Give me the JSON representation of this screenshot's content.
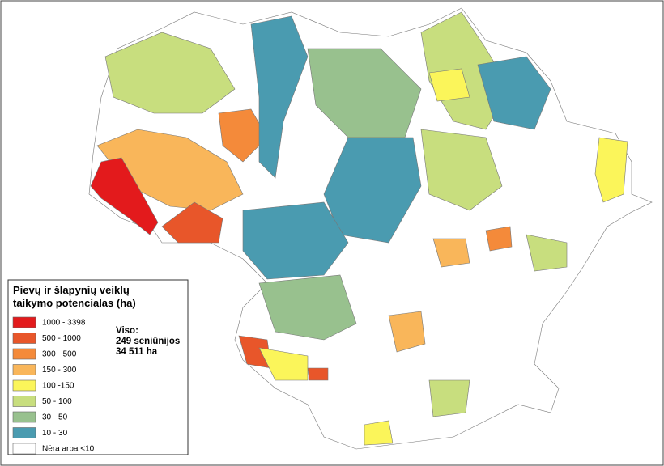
{
  "legend": {
    "title_lines": [
      "Pievų ir šlapynių veiklų",
      "taikymo potencialas (ha)"
    ],
    "items": [
      {
        "label": "1000 - 3398",
        "color": "#e31a1c"
      },
      {
        "label": "500 - 1000",
        "color": "#e8562a"
      },
      {
        "label": "300 - 500",
        "color": "#f48a3a"
      },
      {
        "label": "150 - 300",
        "color": "#f9b65a"
      },
      {
        "label": "100 -150",
        "color": "#fbf55a"
      },
      {
        "label": "50 - 100",
        "color": "#c8de7e"
      },
      {
        "label": "30 - 50",
        "color": "#98c18e"
      },
      {
        "label": "10 - 30",
        "color": "#4a9bb0"
      },
      {
        "label": "Nėra arba <10",
        "color": "#ffffff"
      }
    ]
  },
  "totals": {
    "lines": [
      "Viso:",
      "249 seniūnijos",
      "34 511 ha"
    ]
  }
}
